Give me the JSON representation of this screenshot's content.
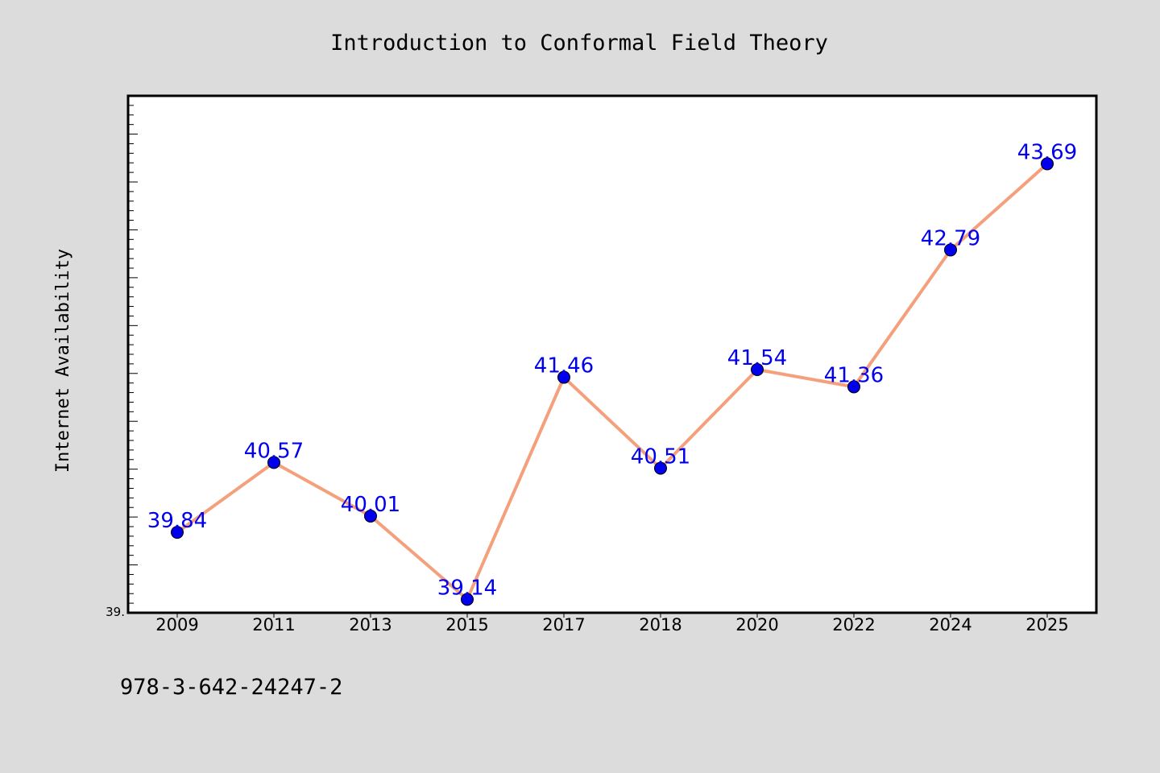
{
  "isbn": "978-3-642-24247-2",
  "colors": {
    "background": "#dcdcdc",
    "plot_background": "#ffffff",
    "line": "#f4a07c",
    "marker": "#0000ee",
    "data_label": "#0000ee",
    "frame": "#000000"
  },
  "chart_data": {
    "type": "line",
    "title": "Introduction to Conformal Field Theory",
    "xlabel": "",
    "ylabel": "Internet Availability",
    "categories": [
      "2009",
      "2011",
      "2013",
      "2015",
      "2017",
      "2018",
      "2020",
      "2022",
      "2024",
      "2025"
    ],
    "series": [
      {
        "values": [
          39.84,
          40.57,
          40.01,
          39.14,
          41.46,
          40.51,
          41.54,
          41.36,
          42.79,
          43.69
        ],
        "data_labels": [
          "39.84",
          "40.57",
          "40.01",
          "39.14",
          "41.46",
          "40.51",
          "41.54",
          "41.36",
          "42.79",
          "43.69"
        ]
      }
    ],
    "ylim": [
      39.0,
      44.4
    ],
    "ytick_labels": [
      "39."
    ],
    "grid": false,
    "legend": "none"
  }
}
